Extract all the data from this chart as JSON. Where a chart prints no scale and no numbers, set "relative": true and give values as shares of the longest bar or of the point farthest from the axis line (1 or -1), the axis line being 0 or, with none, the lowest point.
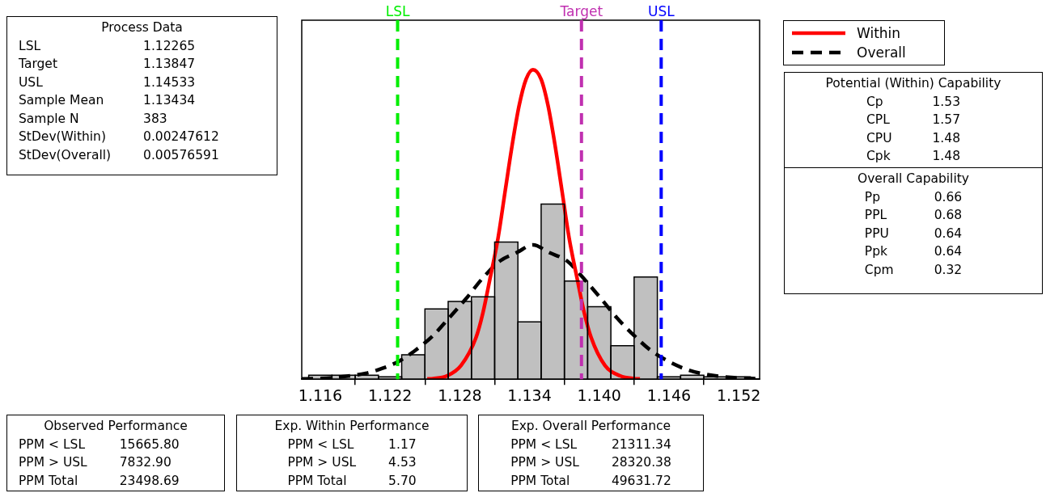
{
  "chart_data": [
    {
      "type": "histogram",
      "bins": [
        1.115,
        1.117,
        1.119,
        1.121,
        1.123,
        1.125,
        1.127,
        1.129,
        1.131,
        1.133,
        1.135,
        1.137,
        1.139,
        1.141,
        1.143,
        1.145,
        1.147,
        1.149,
        1.151,
        1.153
      ],
      "values": [
        0.013,
        0.013,
        0.013,
        0.008,
        0.079,
        0.227,
        0.251,
        0.266,
        0.443,
        0.185,
        0.566,
        0.317,
        0.234,
        0.108,
        0.33,
        0.008,
        0.013,
        0.008,
        0.008
      ],
      "color": "#c0c0c0",
      "relative": true,
      "series": [
        {
          "name": "Within",
          "type": "line",
          "color": "#ff0000",
          "line_style": "solid",
          "x": [
            1.1252,
            1.1257,
            1.1269,
            1.1281,
            1.1294,
            1.13,
            1.1306,
            1.1313,
            1.1319,
            1.1325,
            1.1331,
            1.1337,
            1.1343,
            1.135,
            1.1356,
            1.1362,
            1.1368,
            1.1374,
            1.1381,
            1.1387,
            1.1393,
            1.1405,
            1.1418,
            1.143,
            1.1435
          ],
          "values": [
            0.001,
            0.002,
            0.011,
            0.044,
            0.135,
            0.216,
            0.325,
            0.458,
            0.607,
            0.755,
            0.883,
            0.969,
            1,
            0.969,
            0.883,
            0.755,
            0.607,
            0.458,
            0.325,
            0.216,
            0.135,
            0.044,
            0.011,
            0.002,
            0.001
          ]
        },
        {
          "name": "Overall",
          "type": "line",
          "color": "#000000",
          "line_style": "dashed",
          "x": [
            1.1144,
            1.117,
            1.1199,
            1.1213,
            1.1228,
            1.1242,
            1.1257,
            1.1271,
            1.1286,
            1.13,
            1.1315,
            1.1329,
            1.1343,
            1.1357,
            1.1372,
            1.1386,
            1.1401,
            1.1415,
            1.143,
            1.1444,
            1.1459,
            1.1473,
            1.1487,
            1.1516,
            1.1538
          ],
          "values": [
            0.0011,
            0.0048,
            0.019,
            0.0345,
            0.0587,
            0.094,
            0.141,
            0.199,
            0.263,
            0.328,
            0.383,
            0.409,
            0.434,
            0.409,
            0.383,
            0.328,
            0.263,
            0.199,
            0.141,
            0.094,
            0.0587,
            0.0345,
            0.019,
            0.0048,
            0.0014
          ]
        }
      ],
      "xlim": [
        1.1144,
        1.1538
      ],
      "xticks": [
        1.116,
        1.122,
        1.128,
        1.134,
        {
          "value": 1.14,
          "label": "1.140"
        },
        1.146,
        1.152
      ],
      "ref_lines": [
        {
          "axis": "x",
          "value": 1.12265,
          "label": "LSL",
          "color": "#00ee00",
          "line_style": "dashed"
        },
        {
          "axis": "x",
          "value": 1.13847,
          "label": "Target",
          "color": "#c030b0",
          "line_style": "dashed"
        },
        {
          "axis": "x",
          "value": 1.14533,
          "label": "USL",
          "color": "#0000ff",
          "line_style": "dashed"
        }
      ],
      "legend": "top right"
    },
    {
      "type": "other",
      "title": "Process Data",
      "annotations": [
        "LSL",
        "1.12265",
        "Target",
        "1.13847",
        "USL",
        "1.14533",
        "Sample Mean",
        "1.13434",
        "Sample N",
        "383",
        "StDev(Within)",
        "0.00247612",
        "StDev(Overall)",
        "0.00576591"
      ]
    },
    {
      "type": "other",
      "title": "Potential (Within) Capability",
      "annotations": [
        "Cp",
        "1.53",
        "CPL",
        "1.57",
        "CPU",
        "1.48",
        "Cpk",
        "1.48"
      ]
    },
    {
      "type": "other",
      "title": "Overall Capability",
      "annotations": [
        "Pp",
        "0.66",
        "PPL",
        "0.68",
        "PPU",
        "0.64",
        "Ppk",
        "0.64",
        "Cpm",
        "0.32"
      ]
    },
    {
      "type": "other",
      "title": "Observed Performance",
      "annotations": [
        "PPM < LSL",
        "15665.80",
        "PPM > USL",
        "7832.90",
        "PPM Total",
        "23498.69"
      ]
    },
    {
      "type": "other",
      "title": "Exp. Within Performance",
      "annotations": [
        "PPM < LSL",
        "1.17",
        "PPM > USL",
        "4.53",
        "PPM Total",
        "5.70"
      ]
    },
    {
      "type": "other",
      "title": "Exp. Overall Performance",
      "annotations": [
        "PPM < LSL",
        "21311.34",
        "PPM > USL",
        "28320.38",
        "PPM Total",
        "49631.72"
      ]
    }
  ]
}
